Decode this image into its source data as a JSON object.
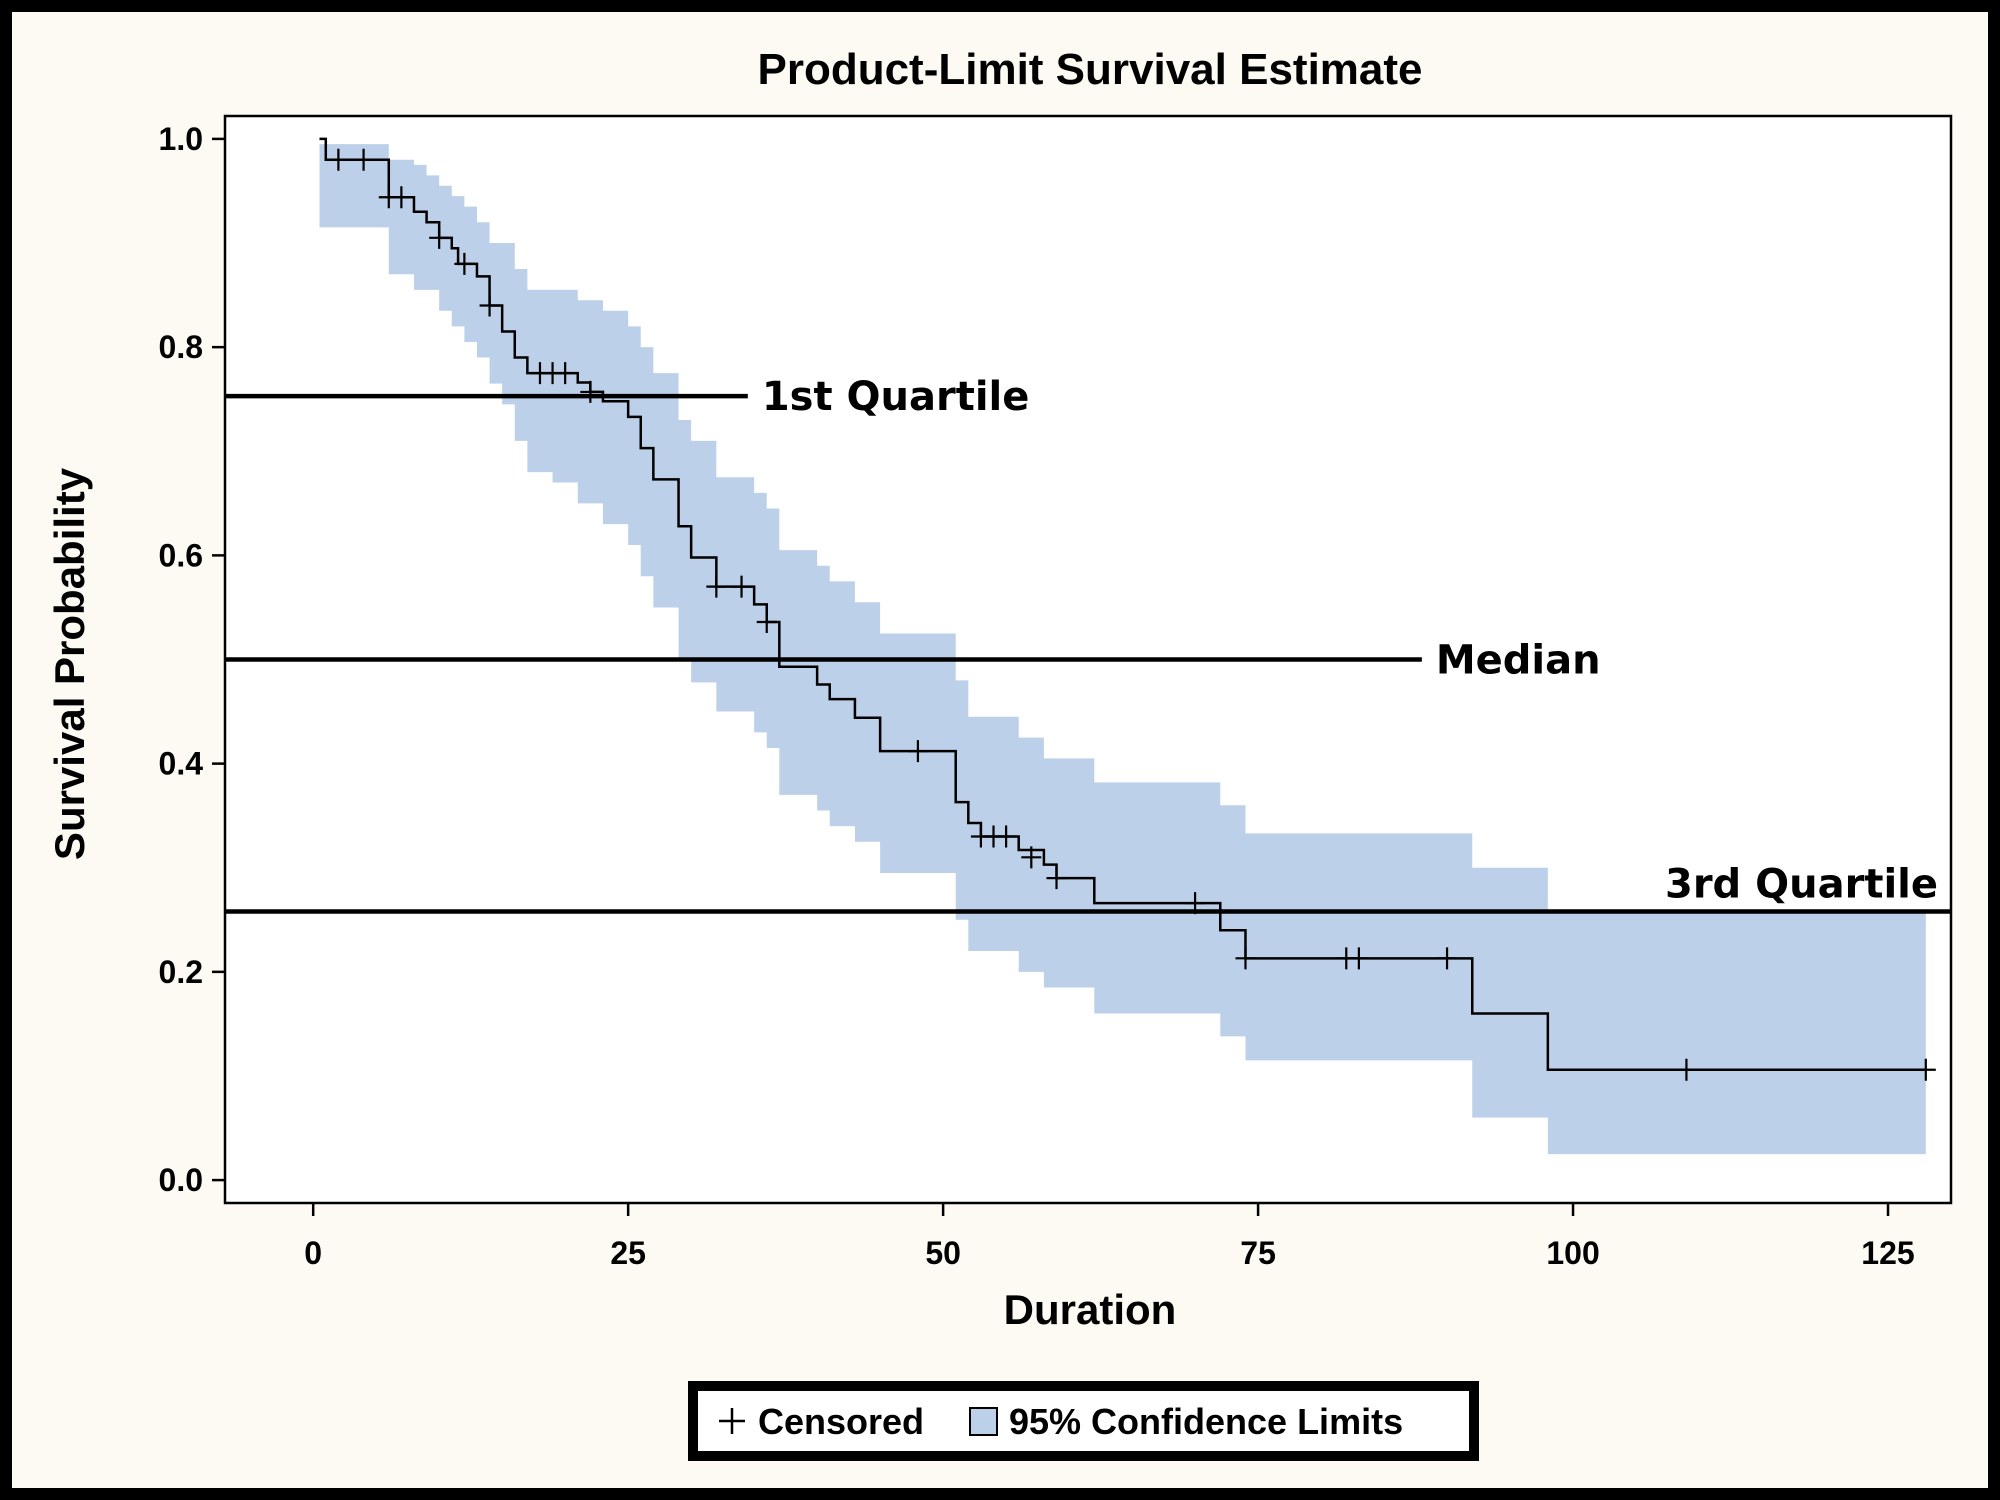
{
  "chart_data": {
    "type": "line",
    "title": "Product-Limit Survival Estimate",
    "xlabel": "Duration",
    "ylabel": "Survival Probability",
    "xlim": [
      -7,
      130
    ],
    "ylim": [
      -0.022,
      1.022
    ],
    "xticks": [
      0,
      25,
      50,
      75,
      100,
      125
    ],
    "yticks": [
      0.0,
      0.2,
      0.4,
      0.6,
      0.8,
      1.0
    ],
    "x_tick_labels": [
      "0",
      "25",
      "50",
      "75",
      "100",
      "125"
    ],
    "y_tick_labels": [
      "0.0",
      "0.2",
      "0.4",
      "0.6",
      "0.8",
      "1.0"
    ],
    "colors": {
      "band": "#bdd0e9",
      "line": "#000000"
    },
    "survival_curve": [
      [
        0.5,
        1.0
      ],
      [
        1,
        0.98
      ],
      [
        6,
        0.96
      ],
      [
        6,
        0.944
      ],
      [
        8,
        0.944
      ],
      [
        8,
        0.93
      ],
      [
        9,
        0.92
      ],
      [
        10,
        0.905
      ],
      [
        11,
        0.895
      ],
      [
        11.5,
        0.88
      ],
      [
        13,
        0.868
      ],
      [
        14,
        0.84
      ],
      [
        15,
        0.815
      ],
      [
        16,
        0.79
      ],
      [
        17,
        0.775
      ],
      [
        21,
        0.766
      ],
      [
        22,
        0.757
      ],
      [
        23,
        0.748
      ],
      [
        25,
        0.733
      ],
      [
        26,
        0.703
      ],
      [
        27,
        0.673
      ],
      [
        29,
        0.628
      ],
      [
        30,
        0.598
      ],
      [
        32,
        0.57
      ],
      [
        35,
        0.553
      ],
      [
        36,
        0.536
      ],
      [
        37,
        0.493
      ],
      [
        40,
        0.476
      ],
      [
        41,
        0.462
      ],
      [
        43,
        0.444
      ],
      [
        45,
        0.412
      ],
      [
        51,
        0.363
      ],
      [
        52,
        0.343
      ],
      [
        53,
        0.33
      ],
      [
        56,
        0.317
      ],
      [
        58,
        0.303
      ],
      [
        59,
        0.29
      ],
      [
        62,
        0.266
      ],
      [
        72,
        0.24
      ],
      [
        74,
        0.213
      ],
      [
        92,
        0.16
      ],
      [
        98,
        0.106
      ],
      [
        128,
        0.106
      ]
    ],
    "band_lower": [
      [
        0.5,
        0.915
      ],
      [
        6,
        0.87
      ],
      [
        8,
        0.855
      ],
      [
        10,
        0.835
      ],
      [
        11,
        0.82
      ],
      [
        12,
        0.805
      ],
      [
        13,
        0.79
      ],
      [
        14,
        0.765
      ],
      [
        15,
        0.745
      ],
      [
        16,
        0.71
      ],
      [
        17,
        0.68
      ],
      [
        19,
        0.67
      ],
      [
        21,
        0.65
      ],
      [
        23,
        0.63
      ],
      [
        25,
        0.61
      ],
      [
        26,
        0.58
      ],
      [
        27,
        0.55
      ],
      [
        29,
        0.5
      ],
      [
        30,
        0.478
      ],
      [
        32,
        0.45
      ],
      [
        35,
        0.43
      ],
      [
        36,
        0.415
      ],
      [
        37,
        0.37
      ],
      [
        40,
        0.355
      ],
      [
        41,
        0.34
      ],
      [
        43,
        0.325
      ],
      [
        45,
        0.295
      ],
      [
        51,
        0.25
      ],
      [
        52,
        0.22
      ],
      [
        56,
        0.2
      ],
      [
        58,
        0.185
      ],
      [
        62,
        0.16
      ],
      [
        72,
        0.138
      ],
      [
        74,
        0.115
      ],
      [
        92,
        0.06
      ],
      [
        98,
        0.025
      ],
      [
        128,
        0.025
      ]
    ],
    "band_upper": [
      [
        0.5,
        0.995
      ],
      [
        6,
        0.98
      ],
      [
        8,
        0.975
      ],
      [
        9,
        0.965
      ],
      [
        10,
        0.955
      ],
      [
        11,
        0.945
      ],
      [
        12,
        0.935
      ],
      [
        13,
        0.92
      ],
      [
        14,
        0.9
      ],
      [
        16,
        0.875
      ],
      [
        17,
        0.855
      ],
      [
        21,
        0.845
      ],
      [
        23,
        0.835
      ],
      [
        25,
        0.82
      ],
      [
        26,
        0.8
      ],
      [
        27,
        0.775
      ],
      [
        29,
        0.73
      ],
      [
        30,
        0.71
      ],
      [
        32,
        0.675
      ],
      [
        35,
        0.66
      ],
      [
        36,
        0.645
      ],
      [
        37,
        0.605
      ],
      [
        40,
        0.59
      ],
      [
        41,
        0.575
      ],
      [
        43,
        0.555
      ],
      [
        45,
        0.525
      ],
      [
        51,
        0.48
      ],
      [
        52,
        0.445
      ],
      [
        56,
        0.425
      ],
      [
        58,
        0.405
      ],
      [
        62,
        0.382
      ],
      [
        72,
        0.36
      ],
      [
        74,
        0.333
      ],
      [
        92,
        0.3
      ],
      [
        98,
        0.26
      ],
      [
        128,
        0.26
      ]
    ],
    "censored": [
      [
        2,
        0.98
      ],
      [
        4,
        0.98
      ],
      [
        6,
        0.944
      ],
      [
        7,
        0.944
      ],
      [
        10,
        0.905
      ],
      [
        12,
        0.88
      ],
      [
        14,
        0.84
      ],
      [
        18,
        0.775
      ],
      [
        19,
        0.775
      ],
      [
        20,
        0.775
      ],
      [
        22,
        0.757
      ],
      [
        32,
        0.57
      ],
      [
        34,
        0.57
      ],
      [
        36,
        0.536
      ],
      [
        48,
        0.412
      ],
      [
        53,
        0.33
      ],
      [
        54,
        0.33
      ],
      [
        55,
        0.33
      ],
      [
        57,
        0.31
      ],
      [
        59,
        0.29
      ],
      [
        70,
        0.266
      ],
      [
        74,
        0.213
      ],
      [
        82,
        0.213
      ],
      [
        83,
        0.213
      ],
      [
        90,
        0.213
      ],
      [
        109,
        0.106
      ],
      [
        128,
        0.106
      ]
    ],
    "reference_lines": [
      {
        "label": "1st Quartile",
        "y": 0.753,
        "x_end": 34.5
      },
      {
        "label": "Median",
        "y": 0.5,
        "x_end": 88
      },
      {
        "label": "3rd Quartile",
        "y": 0.258,
        "x_end": 130
      }
    ],
    "legend": {
      "position": "bottom-center",
      "items": [
        {
          "symbol": "plus",
          "label": "Censored"
        },
        {
          "symbol": "box",
          "label": "95% Confidence Limits"
        }
      ]
    }
  }
}
